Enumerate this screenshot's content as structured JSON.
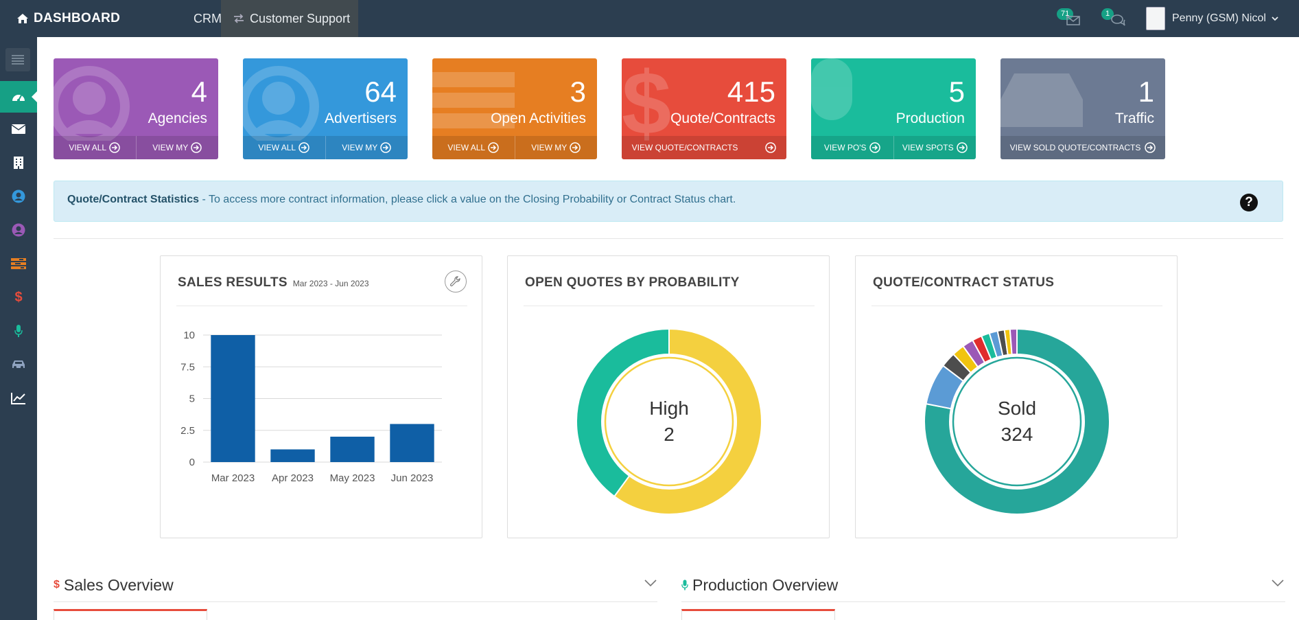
{
  "topbar": {
    "brand": "DASHBOARD",
    "nav_crm": "CRM",
    "nav_customer_support": "Customer Support",
    "mail_count": "71",
    "chat_count": "1",
    "user_name": "Penny (GSM) Nicol"
  },
  "tiles": [
    {
      "count": "4",
      "label": "Agencies",
      "color": "#9b59b6",
      "links": [
        "VIEW ALL",
        "VIEW MY"
      ]
    },
    {
      "count": "64",
      "label": "Advertisers",
      "color": "#3498db",
      "links": [
        "VIEW ALL",
        "VIEW MY"
      ]
    },
    {
      "count": "3",
      "label": "Open Activities",
      "color": "#e67e22",
      "links": [
        "VIEW ALL",
        "VIEW MY"
      ]
    },
    {
      "count": "415",
      "label": "Quote/Contracts",
      "color": "#e74c3c",
      "links": [
        "VIEW QUOTE/CONTRACTS"
      ]
    },
    {
      "count": "5",
      "label": "Production",
      "color": "#1abc9c",
      "links": [
        "VIEW PO'S",
        "VIEW SPOTS"
      ]
    },
    {
      "count": "1",
      "label": "Traffic",
      "color": "#6c7a93",
      "links": [
        "VIEW SOLD QUOTE/CONTRACTS"
      ]
    }
  ],
  "info": {
    "title": "Quote/Contract Statistics",
    "text": " - To access more contract information, please click a value on the Closing Probability or Contract Status chart.",
    "help": "?"
  },
  "panels": {
    "sales_title": "SALES RESULTS",
    "sales_range": "Mar 2023 - Jun 2023",
    "prob_title": "OPEN QUOTES BY PROBABILITY",
    "status_title": "QUOTE/CONTRACT STATUS",
    "prob_center_label": "High",
    "prob_center_value": "2",
    "status_center_label": "Sold",
    "status_center_value": "324"
  },
  "sections": {
    "sales_overview": "Sales Overview",
    "production_overview": "Production Overview"
  },
  "chart_data": [
    {
      "type": "bar",
      "title": "SALES RESULTS",
      "subtitle": "Mar 2023 - Jun 2023",
      "categories": [
        "Mar 2023",
        "Apr 2023",
        "May 2023",
        "Jun 2023"
      ],
      "values": [
        10,
        1,
        2,
        3
      ],
      "yticks": [
        "0",
        "2.5",
        "5",
        "7.5",
        "10"
      ],
      "ylim": [
        0,
        10
      ],
      "grid": true,
      "color": "#0f5fa6"
    },
    {
      "type": "pie",
      "title": "OPEN QUOTES BY PROBABILITY",
      "slices": [
        {
          "label": "High",
          "value": 2,
          "color": "#f4d03f"
        },
        {
          "value": 1.33,
          "color": "#1abc9c"
        }
      ]
    },
    {
      "type": "pie",
      "title": "QUOTE/CONTRACT STATUS",
      "slices": [
        {
          "label": "Sold",
          "value": 324,
          "color": "#26a69a"
        },
        {
          "value": 30,
          "color": "#5b9bd5"
        },
        {
          "value": 11,
          "color": "#4d4d4d"
        },
        {
          "value": 9,
          "color": "#f1c40f"
        },
        {
          "value": 8,
          "color": "#9b59b6"
        },
        {
          "value": 7,
          "color": "#e02d2d"
        },
        {
          "value": 6,
          "color": "#1abc9c"
        },
        {
          "value": 6,
          "color": "#5b9bd5"
        },
        {
          "value": 5,
          "color": "#4d4d4d"
        },
        {
          "value": 4,
          "color": "#f1c40f"
        },
        {
          "value": 5,
          "color": "#9b59b6"
        }
      ]
    }
  ]
}
